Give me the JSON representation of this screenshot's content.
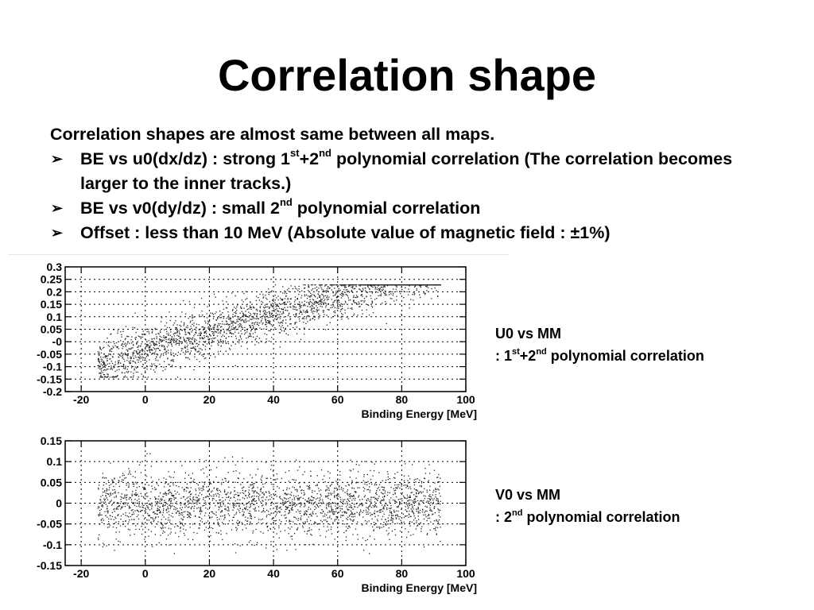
{
  "slide": {
    "title": "Correlation shape",
    "intro": "Correlation shapes are almost same between all maps.",
    "bullet_marker": "➢",
    "bullets": [
      {
        "a": "BE vs u0(dx/dz) : strong 1",
        "s1": "st",
        "b": "+2",
        "s2": "nd",
        "c": " polynomial correlation (The correlation becomes larger to the inner tracks.)"
      },
      {
        "a": "BE vs v0(dy/dz) : small 2",
        "s1": "nd",
        "c": " polynomial correlation"
      },
      {
        "a": "Offset : less than 10 MeV (Absolute value of magnetic field : ±1%)"
      }
    ]
  },
  "annotations": [
    {
      "title": "U0 vs MM",
      "pre": ": 1",
      "s1": "st",
      "mid": "+2",
      "s2": "nd",
      "post": " polynomial correlation"
    },
    {
      "title": "V0 vs MM",
      "pre": ": 2",
      "s2": "nd",
      "post": " polynomial correlation"
    }
  ],
  "chart_data": [
    {
      "type": "scatter",
      "title": "",
      "xlabel": "Binding Energy [MeV]",
      "ylabel": "",
      "xlim": [
        -25,
        100
      ],
      "ylim": [
        -0.2,
        0.3
      ],
      "x_ticks": [
        -20,
        0,
        20,
        40,
        60,
        80,
        100
      ],
      "y_ticks": [
        -0.2,
        -0.15,
        -0.1,
        -0.05,
        0,
        0.05,
        0.1,
        0.15,
        0.2,
        0.25,
        0.3
      ],
      "y_tick_labels": [
        "-0.2",
        "-0.15",
        "-0.1",
        "-0.05",
        "-0",
        "0.05",
        "0.1",
        "0.15",
        "0.2",
        "0.25",
        "0.3"
      ],
      "grid": true,
      "series": [
        {
          "x_range": [
            -15,
            92
          ],
          "y_range": [
            -0.14,
            0.23
          ],
          "trend": {
            "type": "polynomial",
            "coefficients": [
              0.018,
              0.0012,
              1e-05
            ]
          },
          "spread": 0.07,
          "points": 2400
        }
      ]
    },
    {
      "type": "scatter",
      "title": "",
      "xlabel": "Binding Energy [MeV]",
      "ylabel": "",
      "xlim": [
        -25,
        100
      ],
      "ylim": [
        -0.15,
        0.15
      ],
      "x_ticks": [
        -20,
        0,
        20,
        40,
        60,
        80,
        100
      ],
      "y_ticks": [
        -0.15,
        -0.1,
        -0.05,
        0,
        0.05,
        0.1,
        0.15
      ],
      "y_tick_labels": [
        "-0.15",
        "-0.1",
        "-0.05",
        "0",
        "0.05",
        "0.1",
        "0.15"
      ],
      "grid": true,
      "series": [
        {
          "x_range": [
            -15,
            92
          ],
          "y_range": [
            -0.12,
            0.12
          ],
          "trend": {
            "type": "polynomial",
            "coefficients": [
              0.0,
              0.0,
              0.0
            ]
          },
          "spread": 0.055,
          "points": 2400
        }
      ]
    }
  ]
}
